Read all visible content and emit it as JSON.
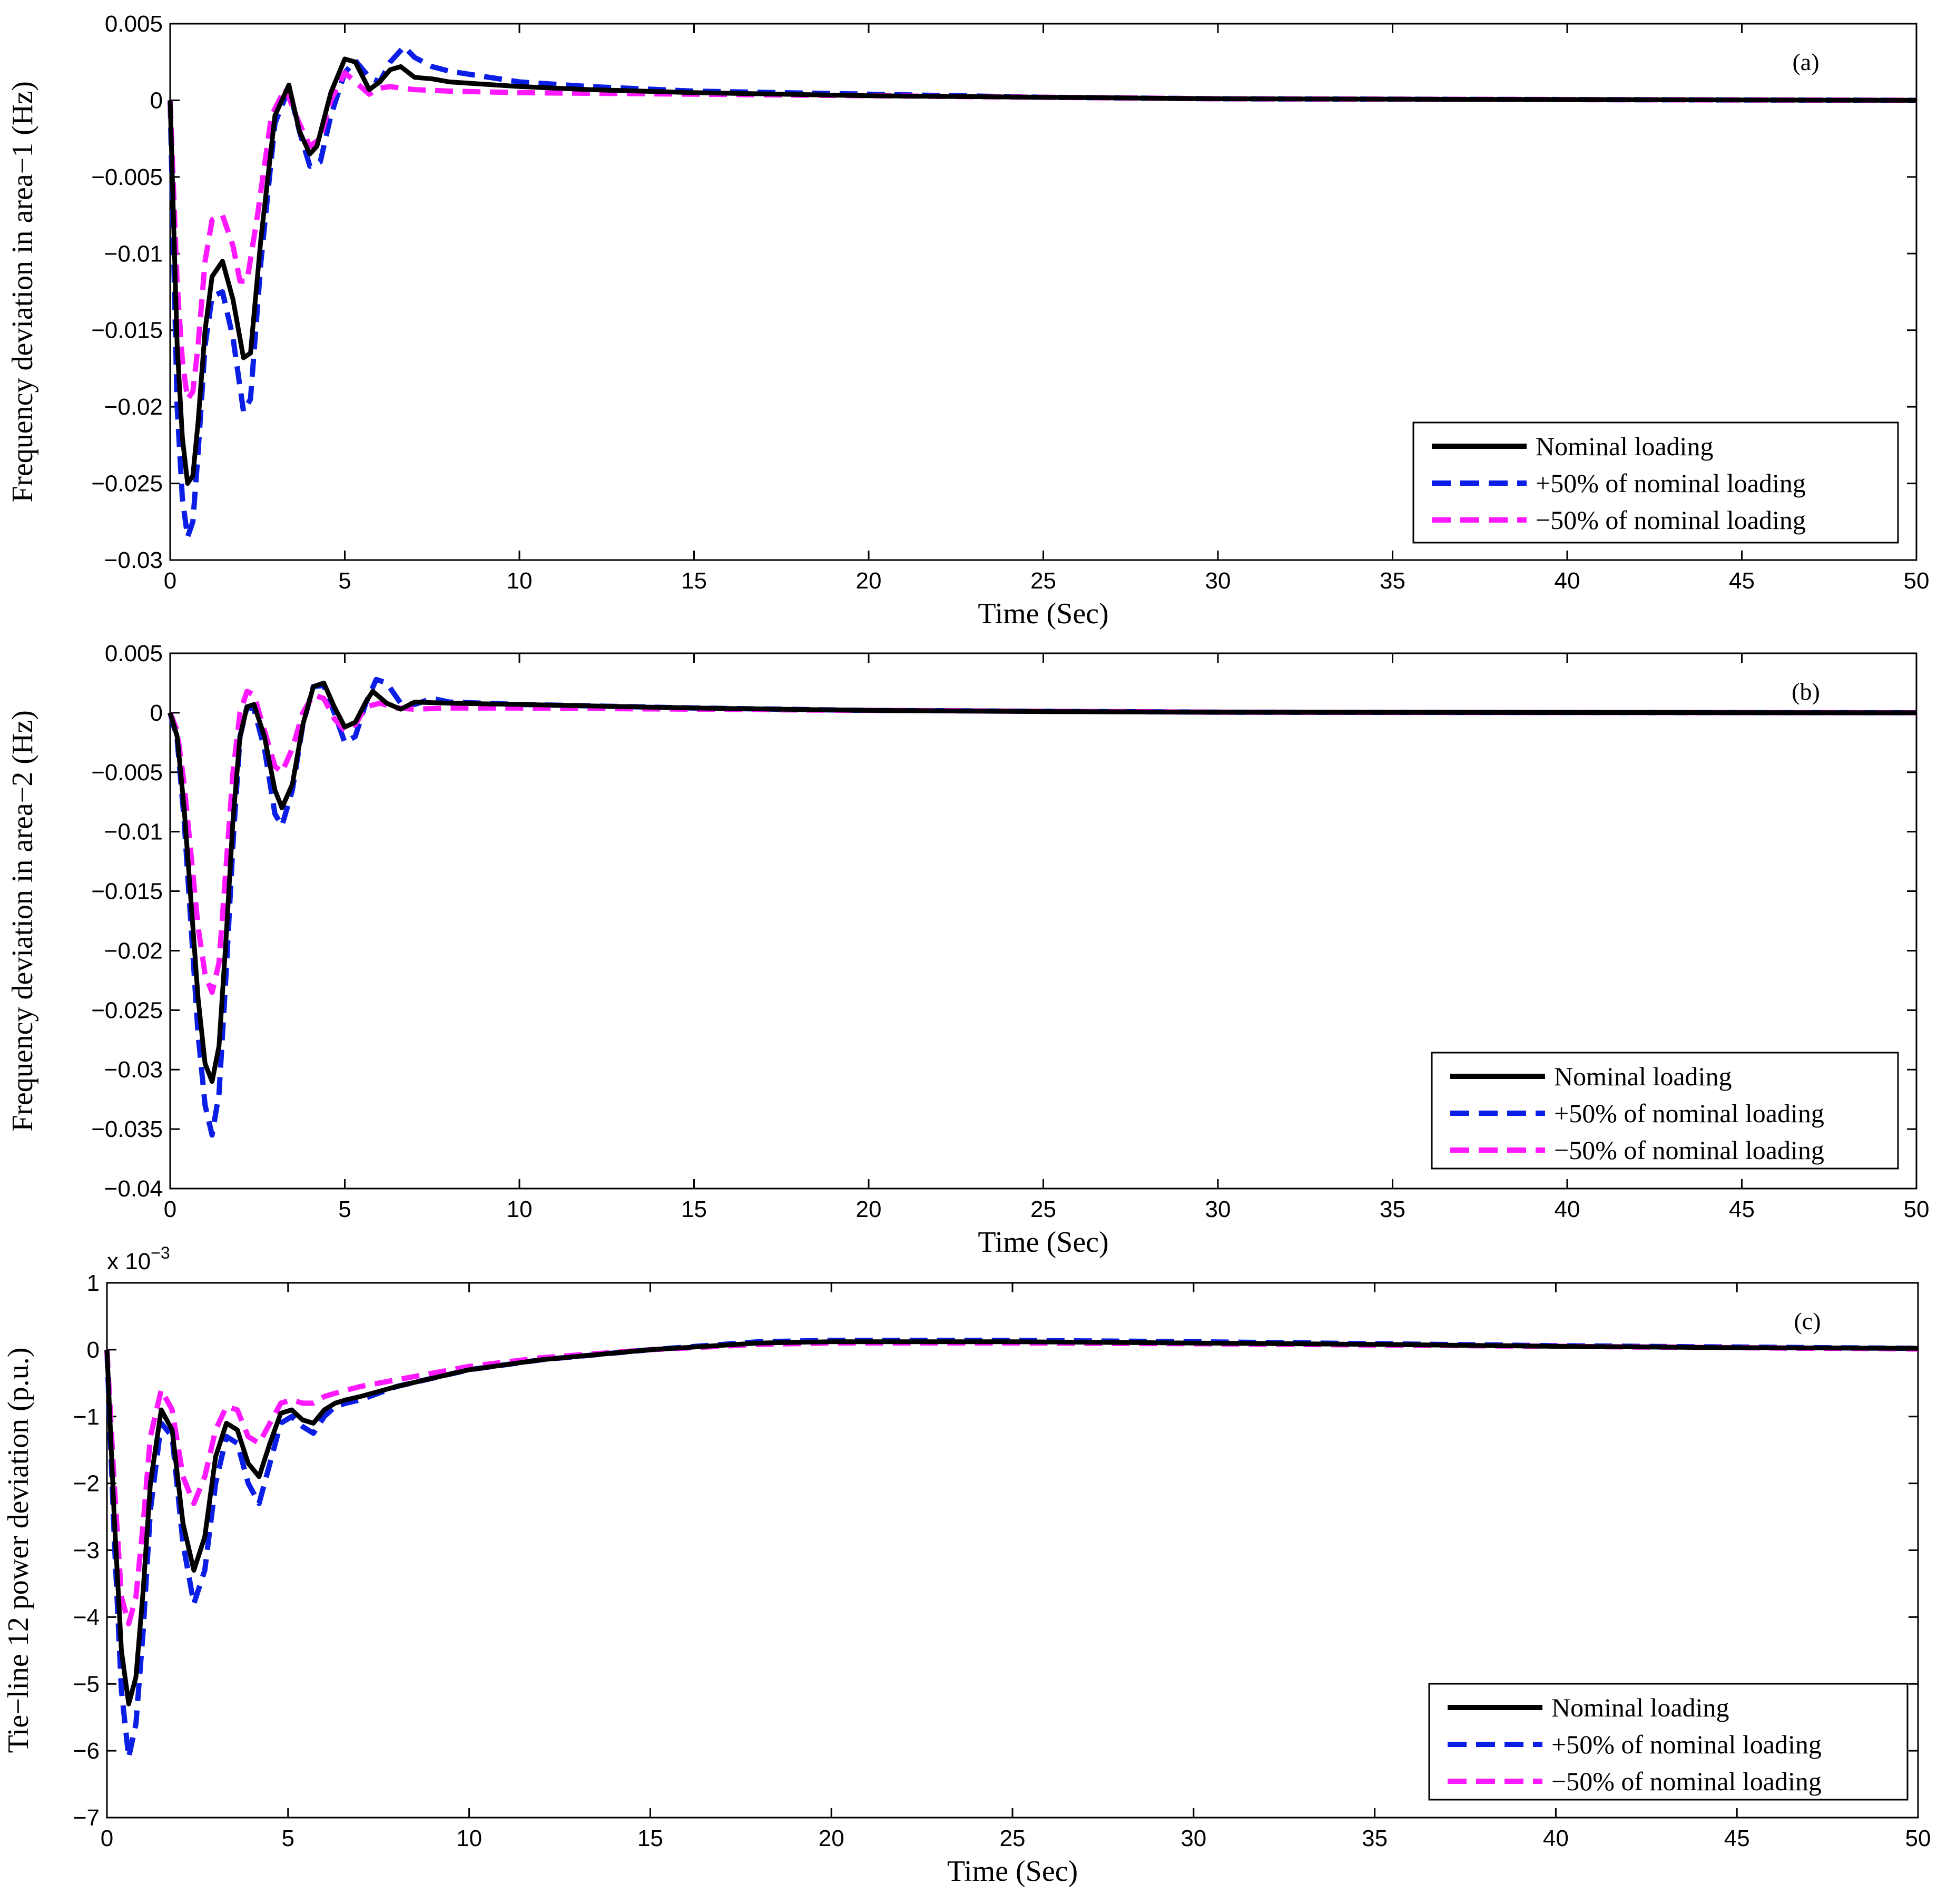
{
  "chart_data": [
    {
      "type": "line",
      "panel_label": "(a)",
      "xlabel": "Time (Sec)",
      "ylabel": "Frequency deviation in area−1 (Hz)",
      "xlim": [
        0,
        50
      ],
      "ylim": [
        -0.03,
        0.005
      ],
      "xticks": [
        0,
        5,
        10,
        15,
        20,
        25,
        30,
        35,
        40,
        45,
        50
      ],
      "xtick_labels": [
        "0",
        "5",
        "10",
        "15",
        "20",
        "25",
        "30",
        "35",
        "40",
        "45",
        "50"
      ],
      "yticks": [
        0.005,
        0,
        -0.005,
        -0.01,
        -0.015,
        -0.02,
        -0.025,
        -0.03
      ],
      "ytick_labels": [
        "0.005",
        "0",
        "−0.005",
        "−0.01",
        "−0.015",
        "−0.02",
        "−0.025",
        "−0.03"
      ],
      "multiplier": "",
      "grid": false,
      "legend_position": "bottom-right",
      "series": [
        {
          "name": "Nominal loading",
          "color": "#000000",
          "style": "solid",
          "x": [
            0,
            0.1,
            0.2,
            0.35,
            0.5,
            0.65,
            0.8,
            1,
            1.2,
            1.5,
            1.8,
            2.1,
            2.3,
            2.6,
            3,
            3.4,
            3.7,
            4,
            4.2,
            4.6,
            5,
            5.3,
            5.7,
            6,
            6.3,
            6.6,
            7,
            7.5,
            8,
            10,
            12,
            15,
            20,
            25,
            30,
            40,
            50
          ],
          "y": [
            0,
            -0.008,
            -0.016,
            -0.022,
            -0.025,
            -0.0245,
            -0.021,
            -0.015,
            -0.0115,
            -0.0105,
            -0.013,
            -0.0168,
            -0.0165,
            -0.009,
            -0.001,
            0.001,
            -0.002,
            -0.0035,
            -0.003,
            0.0005,
            0.0027,
            0.0025,
            0.0007,
            0.0012,
            0.002,
            0.0022,
            0.0015,
            0.0014,
            0.0012,
            0.0009,
            0.0007,
            0.0005,
            0.0003,
            0.0002,
            0.0001,
            5e-05,
            0
          ]
        },
        {
          "name": "+50% of nominal loading",
          "color": "#0a1ee6",
          "style": "dashed",
          "x": [
            0,
            0.1,
            0.2,
            0.35,
            0.5,
            0.65,
            0.8,
            1,
            1.2,
            1.5,
            1.8,
            2.1,
            2.3,
            2.6,
            3,
            3.4,
            3.7,
            4,
            4.3,
            4.6,
            5,
            5.3,
            5.7,
            6,
            6.3,
            6.7,
            7,
            7.5,
            8,
            10,
            12,
            15,
            20,
            25,
            30,
            40,
            50
          ],
          "y": [
            0,
            -0.01,
            -0.02,
            -0.026,
            -0.0285,
            -0.0275,
            -0.023,
            -0.016,
            -0.0128,
            -0.0125,
            -0.0155,
            -0.0203,
            -0.0195,
            -0.0105,
            -0.0015,
            0.0008,
            -0.002,
            -0.0043,
            -0.004,
            -0.001,
            0.0018,
            0.0026,
            0.0015,
            0.0012,
            0.0025,
            0.0035,
            0.0028,
            0.0022,
            0.0019,
            0.0012,
            0.0009,
            0.0006,
            0.0004,
            0.0002,
            0.0001,
            5e-05,
            0
          ]
        },
        {
          "name": "−50% of nominal loading",
          "color": "#ff19ff",
          "style": "dashed",
          "x": [
            0,
            0.1,
            0.2,
            0.35,
            0.5,
            0.65,
            0.8,
            1,
            1.2,
            1.5,
            1.8,
            2,
            2.2,
            2.5,
            2.9,
            3.3,
            3.6,
            4,
            4.3,
            4.6,
            5,
            5.3,
            5.7,
            6,
            6.3,
            6.6,
            7,
            8,
            10,
            15,
            20,
            30,
            40,
            50
          ],
          "y": [
            0,
            -0.006,
            -0.012,
            -0.017,
            -0.0195,
            -0.019,
            -0.016,
            -0.0105,
            -0.0078,
            -0.0075,
            -0.0095,
            -0.0118,
            -0.0118,
            -0.0075,
            -0.001,
            0.0008,
            -0.001,
            -0.003,
            -0.0025,
            0,
            0.0018,
            0.0012,
            0.0004,
            0.0008,
            0.0009,
            0.0008,
            0.0007,
            0.0006,
            0.0005,
            0.0004,
            0.0003,
            0.0001,
            5e-05,
            0
          ]
        }
      ]
    },
    {
      "type": "line",
      "panel_label": "(b)",
      "xlabel": "Time (Sec)",
      "ylabel": "Frequency deviation in area−2 (Hz)",
      "xlim": [
        0,
        50
      ],
      "ylim": [
        -0.04,
        0.005
      ],
      "xticks": [
        0,
        5,
        10,
        15,
        20,
        25,
        30,
        35,
        40,
        45,
        50
      ],
      "xtick_labels": [
        "0",
        "5",
        "10",
        "15",
        "20",
        "25",
        "30",
        "35",
        "40",
        "45",
        "50"
      ],
      "yticks": [
        0.005,
        0,
        -0.005,
        -0.01,
        -0.015,
        -0.02,
        -0.025,
        -0.03,
        -0.035,
        -0.04
      ],
      "ytick_labels": [
        "0.005",
        "0",
        "−0.005",
        "−0.01",
        "−0.015",
        "−0.02",
        "−0.025",
        "−0.03",
        "−0.035",
        "−0.04"
      ],
      "multiplier": "",
      "grid": false,
      "legend_position": "bottom-right",
      "series": [
        {
          "name": "Nominal loading",
          "color": "#000000",
          "style": "solid",
          "x": [
            0,
            0.2,
            0.4,
            0.6,
            0.8,
            1,
            1.2,
            1.4,
            1.6,
            1.8,
            2,
            2.2,
            2.4,
            2.7,
            3,
            3.2,
            3.5,
            3.8,
            4.1,
            4.4,
            4.7,
            5,
            5.3,
            5.6,
            5.8,
            6.2,
            6.6,
            7,
            8,
            10,
            15,
            20,
            25,
            30,
            40,
            50
          ],
          "y": [
            0,
            -0.002,
            -0.008,
            -0.016,
            -0.024,
            -0.0295,
            -0.031,
            -0.028,
            -0.019,
            -0.009,
            -0.002,
            0.0005,
            0.0007,
            -0.002,
            -0.0065,
            -0.008,
            -0.006,
            -0.001,
            0.0022,
            0.0025,
            0.0005,
            -0.0012,
            -0.0008,
            0.0009,
            0.0018,
            0.0008,
            0.0003,
            0.0009,
            0.0008,
            0.0007,
            0.0004,
            0.0002,
            0.0001,
            5e-05,
            2e-05,
            0
          ]
        },
        {
          "name": "+50% of nominal loading",
          "color": "#0a1ee6",
          "style": "dashed",
          "x": [
            0,
            0.2,
            0.4,
            0.6,
            0.8,
            1,
            1.2,
            1.4,
            1.6,
            1.8,
            2,
            2.2,
            2.4,
            2.7,
            3,
            3.2,
            3.5,
            3.8,
            4.1,
            4.4,
            4.7,
            5,
            5.3,
            5.6,
            5.9,
            6.2,
            6.6,
            7,
            7.5,
            8,
            10,
            15,
            20,
            30,
            40,
            50
          ],
          "y": [
            0,
            -0.0022,
            -0.009,
            -0.018,
            -0.027,
            -0.033,
            -0.0355,
            -0.032,
            -0.022,
            -0.011,
            -0.002,
            0.0005,
            0.0003,
            -0.003,
            -0.0085,
            -0.0095,
            -0.0065,
            -0.001,
            0.0022,
            0.0023,
            0,
            -0.0025,
            -0.002,
            0.0008,
            0.0028,
            0.0025,
            0.0008,
            0.0007,
            0.0012,
            0.0009,
            0.0007,
            0.0004,
            0.0002,
            5e-05,
            2e-05,
            0
          ]
        },
        {
          "name": "−50% of nominal loading",
          "color": "#ff19ff",
          "style": "dashed",
          "x": [
            0,
            0.2,
            0.4,
            0.6,
            0.8,
            1,
            1.2,
            1.4,
            1.6,
            1.8,
            2,
            2.2,
            2.4,
            2.7,
            3,
            3.2,
            3.5,
            3.8,
            4.1,
            4.4,
            4.7,
            5,
            5.3,
            5.6,
            6,
            6.5,
            7,
            8,
            10,
            15,
            20,
            30,
            40,
            50
          ],
          "y": [
            0,
            -0.0015,
            -0.006,
            -0.012,
            -0.018,
            -0.022,
            -0.0235,
            -0.021,
            -0.013,
            -0.005,
            0,
            0.0018,
            0.0015,
            -0.0015,
            -0.0045,
            -0.005,
            -0.003,
            0,
            0.0015,
            0.0012,
            -0.0005,
            -0.0015,
            -0.001,
            0.0005,
            0.0008,
            0.0004,
            0.0003,
            0.0004,
            0.0004,
            0.0003,
            0.0002,
            5e-05,
            2e-05,
            0
          ]
        }
      ]
    },
    {
      "type": "line",
      "panel_label": "(c)",
      "xlabel": "Time (Sec)",
      "ylabel": "Tie−line 12 power deviation (p.u.)",
      "xlim": [
        0,
        50
      ],
      "ylim": [
        -7,
        1
      ],
      "xticks": [
        0,
        5,
        10,
        15,
        20,
        25,
        30,
        35,
        40,
        45,
        50
      ],
      "xtick_labels": [
        "0",
        "5",
        "10",
        "15",
        "20",
        "25",
        "30",
        "35",
        "40",
        "45",
        "50"
      ],
      "yticks": [
        1,
        0,
        -1,
        -2,
        -3,
        -4,
        -5,
        -6,
        -7
      ],
      "ytick_labels": [
        "1",
        "0",
        "−1",
        "−2",
        "−3",
        "−4",
        "−5",
        "−6",
        "−7"
      ],
      "multiplier": "x 10",
      "multiplier_exponent": "−3",
      "grid": false,
      "legend_position": "bottom-right",
      "series": [
        {
          "name": "Nominal loading",
          "color": "#000000",
          "style": "solid",
          "x": [
            0,
            0.2,
            0.4,
            0.6,
            0.8,
            1,
            1.2,
            1.5,
            1.8,
            2.1,
            2.4,
            2.7,
            3,
            3.3,
            3.6,
            3.9,
            4.2,
            4.5,
            4.8,
            5.1,
            5.4,
            5.7,
            6,
            6.3,
            6.6,
            7,
            8,
            10,
            12,
            15,
            18,
            20,
            25,
            30,
            35,
            40,
            45,
            50
          ],
          "y": [
            0,
            -2.5,
            -4.5,
            -5.3,
            -4.9,
            -3.6,
            -2,
            -0.9,
            -1.2,
            -2.6,
            -3.3,
            -2.8,
            -1.6,
            -1.1,
            -1.2,
            -1.7,
            -1.9,
            -1.4,
            -0.95,
            -0.9,
            -1.05,
            -1.1,
            -0.9,
            -0.8,
            -0.75,
            -0.7,
            -0.55,
            -0.3,
            -0.15,
            0,
            0.1,
            0.12,
            0.12,
            0.1,
            0.08,
            0.05,
            0.03,
            0.02
          ]
        },
        {
          "name": "+50% of nominal loading",
          "color": "#0a1ee6",
          "style": "dashed",
          "x": [
            0,
            0.2,
            0.4,
            0.6,
            0.8,
            1,
            1.2,
            1.5,
            1.8,
            2.1,
            2.4,
            2.7,
            3,
            3.3,
            3.6,
            3.9,
            4.2,
            4.5,
            4.8,
            5.1,
            5.4,
            5.7,
            6,
            6.3,
            6.6,
            7,
            8,
            10,
            12,
            15,
            18,
            20,
            25,
            30,
            35,
            40,
            45,
            50
          ],
          "y": [
            0,
            -2.8,
            -5.1,
            -6.1,
            -5.6,
            -4.2,
            -2.4,
            -1.1,
            -1.3,
            -2.9,
            -3.8,
            -3.3,
            -2,
            -1.3,
            -1.4,
            -2,
            -2.3,
            -1.7,
            -1.1,
            -1,
            -1.15,
            -1.25,
            -1,
            -0.85,
            -0.8,
            -0.75,
            -0.55,
            -0.3,
            -0.15,
            0,
            0.12,
            0.14,
            0.14,
            0.12,
            0.09,
            0.06,
            0.04,
            0.02
          ]
        },
        {
          "name": "−50% of nominal loading",
          "color": "#ff19ff",
          "style": "dashed",
          "x": [
            0,
            0.2,
            0.4,
            0.6,
            0.8,
            1,
            1.2,
            1.5,
            1.8,
            2.1,
            2.4,
            2.7,
            3,
            3.3,
            3.6,
            3.9,
            4.2,
            4.5,
            4.8,
            5.1,
            5.4,
            5.7,
            6,
            6.5,
            7,
            8,
            10,
            12,
            15,
            18,
            20,
            25,
            30,
            35,
            40,
            45,
            50
          ],
          "y": [
            0,
            -2,
            -3.7,
            -4.1,
            -3.7,
            -2.6,
            -1.3,
            -0.6,
            -0.9,
            -1.9,
            -2.3,
            -1.9,
            -1.2,
            -0.85,
            -0.9,
            -1.3,
            -1.4,
            -1.1,
            -0.8,
            -0.75,
            -0.8,
            -0.8,
            -0.7,
            -0.62,
            -0.55,
            -0.45,
            -0.25,
            -0.12,
            0,
            0.08,
            0.1,
            0.1,
            0.09,
            0.07,
            0.05,
            0.03,
            0.01
          ]
        }
      ]
    }
  ]
}
